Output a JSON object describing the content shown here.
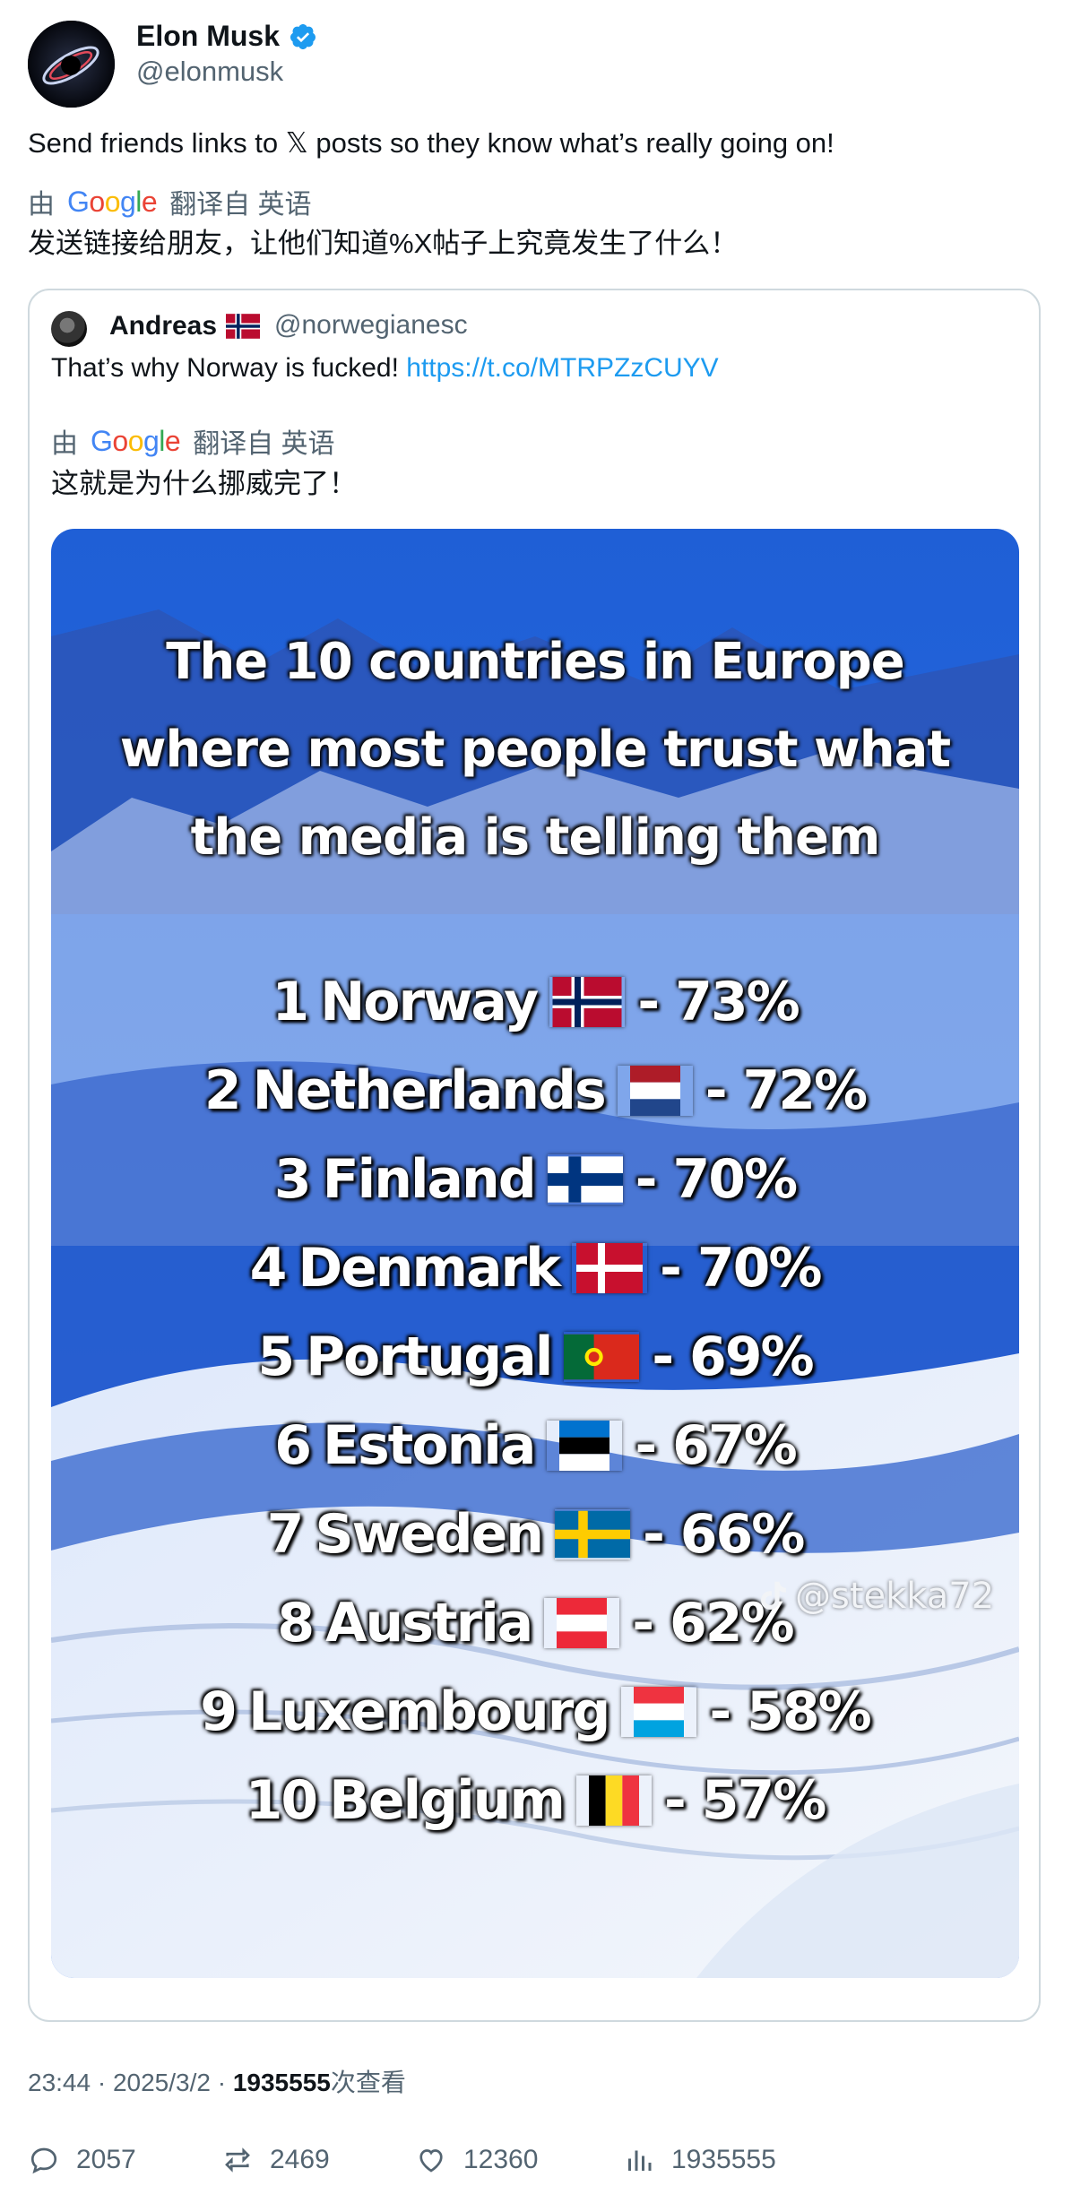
{
  "author": {
    "name": "Elon Musk",
    "handle": "@elonmusk",
    "verified_color": "#1d9bf0"
  },
  "tweet": {
    "text": "Send friends links to 𝕏 posts so they know what’s really going on!",
    "translation": {
      "prefix": "由",
      "provider": "Google",
      "label": "翻译自 英语",
      "text": "发送链接给朋友，让他们知道%X帖子上究竟发生了什么！"
    }
  },
  "quote": {
    "name": "Andreas",
    "flag_emoji": "🇳🇴",
    "handle": "@norwegianesc",
    "text": "That’s why Norway is fucked!",
    "link": "https://t.co/MTRPZzCUYV",
    "translation": {
      "prefix": "由",
      "provider": "Google",
      "label": "翻译自 英语",
      "text": "这就是为什么挪威完了！"
    },
    "media": {
      "title_lines": [
        "The 10 countries in Europe",
        "where most people trust what",
        "the media is telling them"
      ],
      "ranking": [
        {
          "rank": "1",
          "country": "Norway",
          "flag": "norway",
          "value": "- 73%"
        },
        {
          "rank": "2",
          "country": "Netherlands",
          "flag": "netherlands",
          "value": "- 72%"
        },
        {
          "rank": "3",
          "country": "Finland",
          "flag": "finland",
          "value": "- 70%"
        },
        {
          "rank": "4",
          "country": "Denmark",
          "flag": "denmark",
          "value": "- 70%"
        },
        {
          "rank": "5",
          "country": "Portugal",
          "flag": "portugal",
          "value": "- 69%"
        },
        {
          "rank": "6",
          "country": "Estonia",
          "flag": "estonia",
          "value": "- 67%"
        },
        {
          "rank": "7",
          "country": "Sweden",
          "flag": "sweden",
          "value": "- 66%"
        },
        {
          "rank": "8",
          "country": "Austria",
          "flag": "austria",
          "value": "- 62%"
        },
        {
          "rank": "9",
          "country": "Luxembourg",
          "flag": "luxembourg",
          "value": "- 58%"
        },
        {
          "rank": "10",
          "country": "Belgium",
          "flag": "belgium",
          "value": "- 57%"
        }
      ],
      "watermark": "@stekka72",
      "watermark_icon": "tiktok-icon"
    }
  },
  "footer": {
    "time": "23:44 · 2025/3/2 · ",
    "views_count": "1935555",
    "views_label": "次查看"
  },
  "actions": {
    "replies": "2057",
    "reposts": "2469",
    "likes": "12360",
    "views": "1935555"
  },
  "colors": {
    "text": "#0f1419",
    "secondary": "#536471",
    "link": "#1d9bf0",
    "border": "#cfd9de"
  }
}
